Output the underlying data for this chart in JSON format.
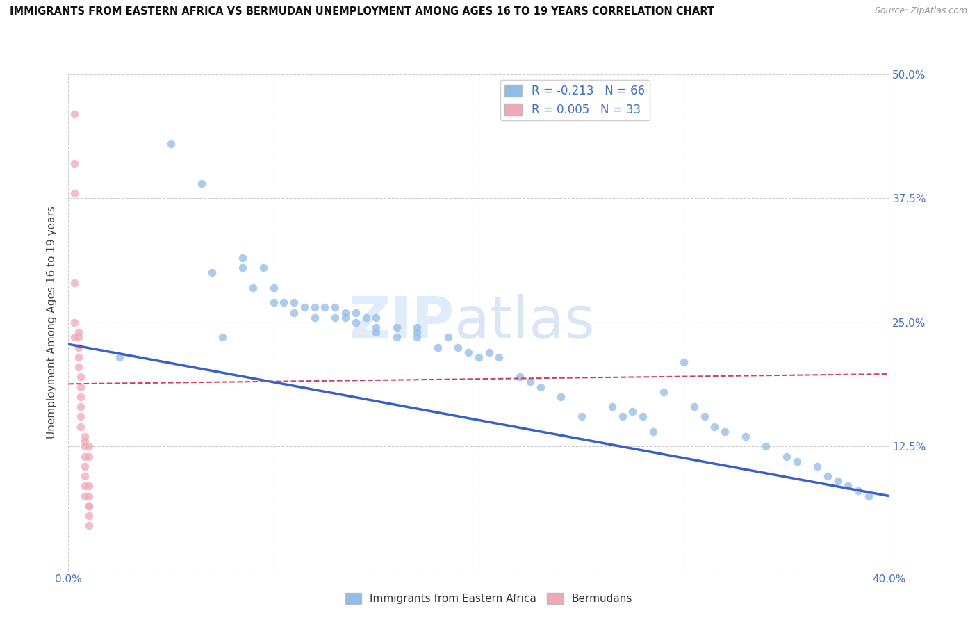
{
  "title": "IMMIGRANTS FROM EASTERN AFRICA VS BERMUDAN UNEMPLOYMENT AMONG AGES 16 TO 19 YEARS CORRELATION CHART",
  "source": "Source: ZipAtlas.com",
  "ylabel": "Unemployment Among Ages 16 to 19 years",
  "xlim": [
    0.0,
    0.4
  ],
  "ylim": [
    0.0,
    0.5
  ],
  "x_ticks": [
    0.0,
    0.1,
    0.2,
    0.3,
    0.4
  ],
  "x_tick_labels": [
    "0.0%",
    "",
    "",
    "",
    "40.0%"
  ],
  "y_ticks": [
    0.0,
    0.125,
    0.25,
    0.375,
    0.5
  ],
  "y_tick_labels_right": [
    "",
    "12.5%",
    "25.0%",
    "37.5%",
    "50.0%"
  ],
  "blue_color": "#92bce8",
  "pink_color": "#f0a8b8",
  "blue_line_color": "#3a5fcd",
  "pink_line_color": "#d04060",
  "axis_color": "#4472c4",
  "legend_R1": "R = -0.213",
  "legend_N1": "N = 66",
  "legend_R2": "R = 0.005",
  "legend_N2": "N = 33",
  "blue_scatter_x": [
    0.025,
    0.05,
    0.065,
    0.07,
    0.075,
    0.085,
    0.085,
    0.09,
    0.095,
    0.1,
    0.1,
    0.105,
    0.11,
    0.11,
    0.115,
    0.12,
    0.12,
    0.125,
    0.13,
    0.13,
    0.135,
    0.135,
    0.14,
    0.14,
    0.145,
    0.15,
    0.15,
    0.15,
    0.16,
    0.16,
    0.17,
    0.17,
    0.17,
    0.18,
    0.185,
    0.19,
    0.195,
    0.2,
    0.205,
    0.21,
    0.22,
    0.225,
    0.23,
    0.24,
    0.25,
    0.265,
    0.27,
    0.275,
    0.28,
    0.285,
    0.29,
    0.3,
    0.305,
    0.31,
    0.315,
    0.32,
    0.33,
    0.34,
    0.35,
    0.355,
    0.365,
    0.37,
    0.375,
    0.38,
    0.385,
    0.39
  ],
  "blue_scatter_y": [
    0.215,
    0.43,
    0.39,
    0.3,
    0.235,
    0.315,
    0.305,
    0.285,
    0.305,
    0.27,
    0.285,
    0.27,
    0.26,
    0.27,
    0.265,
    0.255,
    0.265,
    0.265,
    0.255,
    0.265,
    0.26,
    0.255,
    0.25,
    0.26,
    0.255,
    0.24,
    0.255,
    0.245,
    0.235,
    0.245,
    0.235,
    0.24,
    0.245,
    0.225,
    0.235,
    0.225,
    0.22,
    0.215,
    0.22,
    0.215,
    0.195,
    0.19,
    0.185,
    0.175,
    0.155,
    0.165,
    0.155,
    0.16,
    0.155,
    0.14,
    0.18,
    0.21,
    0.165,
    0.155,
    0.145,
    0.14,
    0.135,
    0.125,
    0.115,
    0.11,
    0.105,
    0.095,
    0.09,
    0.085,
    0.08,
    0.075
  ],
  "pink_scatter_x": [
    0.003,
    0.003,
    0.003,
    0.003,
    0.003,
    0.003,
    0.005,
    0.005,
    0.005,
    0.005,
    0.005,
    0.006,
    0.006,
    0.006,
    0.006,
    0.006,
    0.006,
    0.008,
    0.008,
    0.008,
    0.008,
    0.008,
    0.008,
    0.008,
    0.008,
    0.01,
    0.01,
    0.01,
    0.01,
    0.01,
    0.01,
    0.01,
    0.01
  ],
  "pink_scatter_y": [
    0.46,
    0.41,
    0.38,
    0.29,
    0.25,
    0.235,
    0.24,
    0.235,
    0.225,
    0.215,
    0.205,
    0.195,
    0.185,
    0.175,
    0.165,
    0.155,
    0.145,
    0.135,
    0.13,
    0.125,
    0.115,
    0.105,
    0.095,
    0.085,
    0.075,
    0.065,
    0.055,
    0.045,
    0.115,
    0.125,
    0.085,
    0.075,
    0.065
  ],
  "blue_line_x": [
    0.0,
    0.4
  ],
  "blue_line_y": [
    0.228,
    0.075
  ],
  "pink_line_x": [
    0.0,
    0.4
  ],
  "pink_line_y": [
    0.188,
    0.198
  ],
  "watermark_zip": "ZIP",
  "watermark_atlas": "atlas",
  "bg_color": "#ffffff",
  "grid_color": "#cccccc",
  "bottom_legend_labels": [
    "Immigrants from Eastern Africa",
    "Bermudans"
  ]
}
